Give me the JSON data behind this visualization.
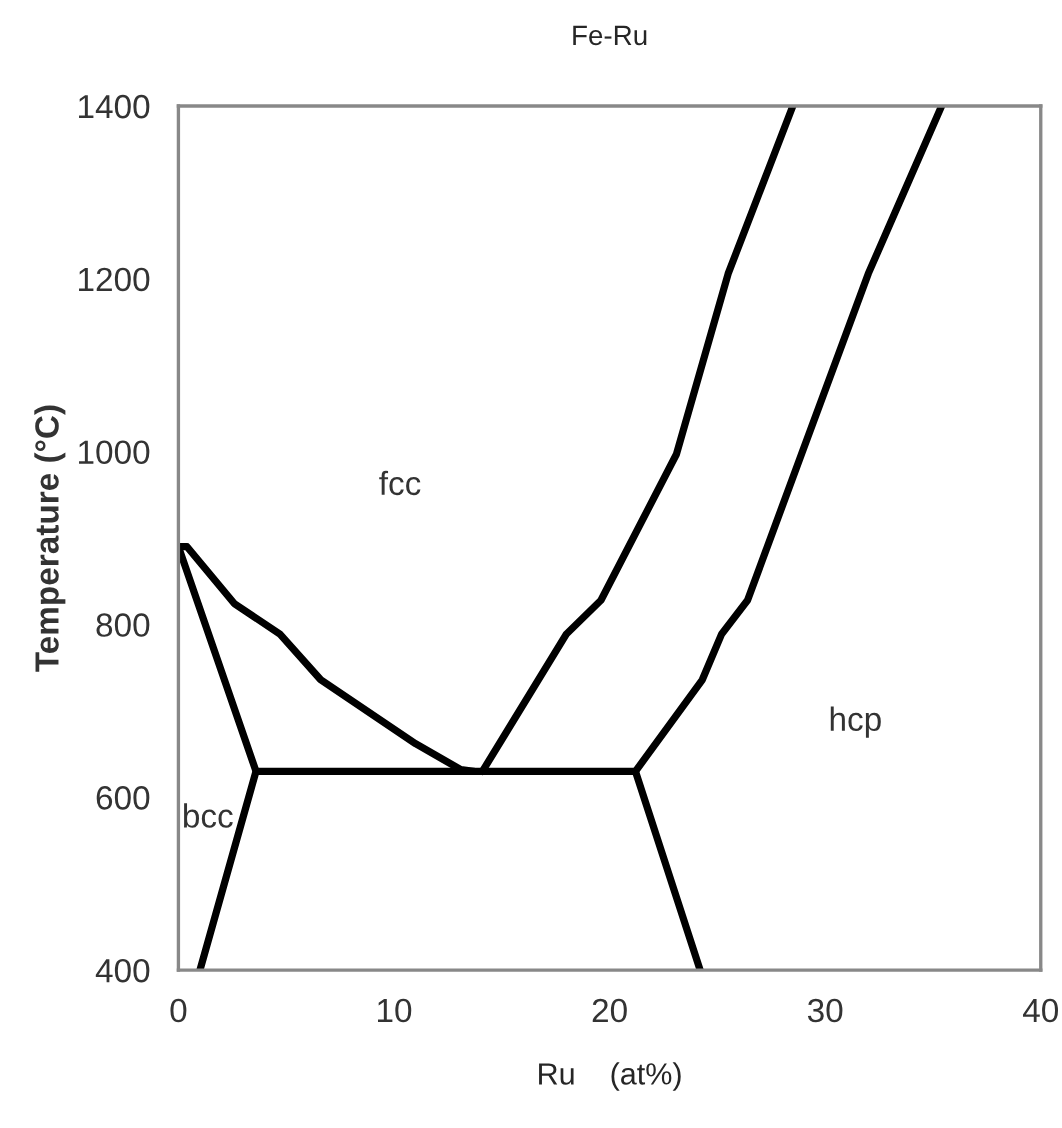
{
  "chart_data": {
    "type": "line",
    "title": "Fe-Ru",
    "xlabel": "Ru    (at%)",
    "ylabel": "Temperature (°C)",
    "xlim": [
      0,
      40
    ],
    "xticks": [
      0,
      10,
      20,
      30,
      40
    ],
    "ylim": [
      400,
      1400
    ],
    "yticks": [
      400,
      600,
      800,
      1000,
      1200,
      1400
    ],
    "grid": false,
    "legend": false,
    "series": [
      {
        "color": "#000000",
        "x": [
          0,
          3.6,
          1.0
        ],
        "values": [
          890,
          630,
          400
        ]
      },
      {
        "color": "#000000",
        "x": [
          0,
          0.4,
          2.6,
          4.7,
          6.6,
          11.0,
          13.1,
          13.7
        ],
        "values": [
          890,
          890,
          824,
          789,
          736,
          662,
          632,
          630
        ]
      },
      {
        "color": "#000000",
        "x": [
          3.6,
          21.2
        ],
        "values": [
          630,
          630
        ]
      },
      {
        "color": "#000000",
        "x": [
          21.2,
          24.2
        ],
        "values": [
          630,
          400
        ]
      },
      {
        "color": "#000000",
        "x": [
          14.1,
          18.0,
          19.6,
          23.1,
          25.5,
          28.5
        ],
        "values": [
          630,
          789,
          828,
          997,
          1206,
          1400
        ]
      },
      {
        "color": "#000000",
        "x": [
          21.2,
          24.3,
          25.2,
          26.4,
          28.9,
          32.0,
          35.4
        ],
        "values": [
          630,
          736,
          789,
          828,
          997,
          1206,
          1400
        ]
      }
    ],
    "annotations": [
      "fcc",
      "hcp",
      "bcc"
    ]
  }
}
